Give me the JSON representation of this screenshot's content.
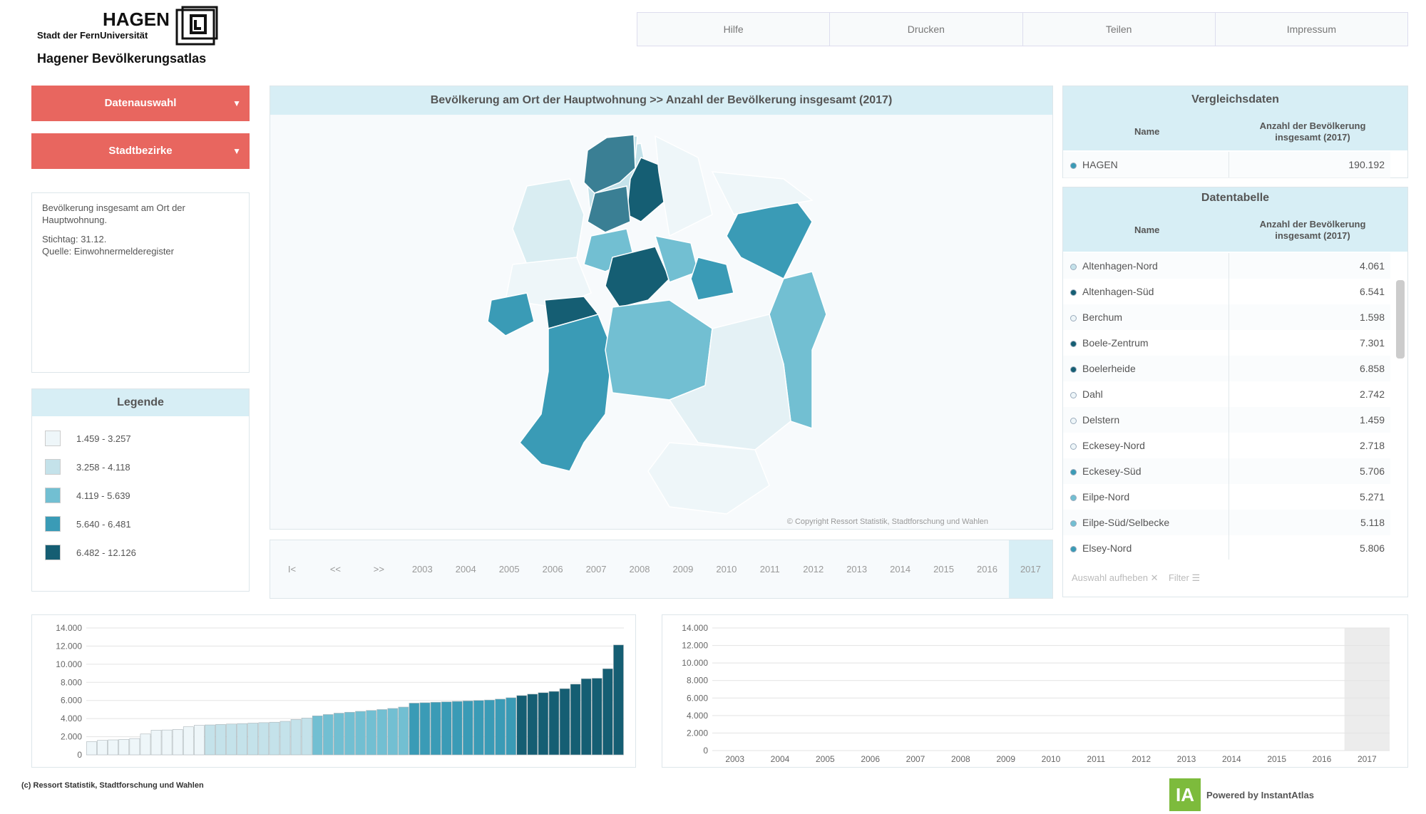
{
  "header": {
    "logo_text": "HAGEN",
    "logo_subtitle": "Stadt der FernUniversität",
    "title": "Hagener Bevölkerungsatlas"
  },
  "nav": [
    "Hilfe",
    "Drucken",
    "Teilen",
    "Impressum"
  ],
  "sidebar": {
    "buttons": [
      "Datenauswahl",
      "Stadtbezirke"
    ],
    "description": "Bevölkerung insgesamt am Ort der Hauptwohnung.",
    "reference_date": "Stichtag: 31.12.",
    "source": "Quelle: Einwohnermelderegister"
  },
  "legend": {
    "title": "Legende",
    "items": [
      {
        "label": "1.459 - 3.257",
        "min": 1459,
        "max": 3257,
        "color": "#eef6f9"
      },
      {
        "label": "3.258 - 4.118",
        "min": 3258,
        "max": 4118,
        "color": "#c4e2ea"
      },
      {
        "label": "4.119 - 5.639",
        "min": 4119,
        "max": 5639,
        "color": "#72bfd2"
      },
      {
        "label": "5.640 - 6.481",
        "min": 5640,
        "max": 6481,
        "color": "#3a9bb6"
      },
      {
        "label": "6.482 - 12.126",
        "min": 6482,
        "max": 12126,
        "color": "#155e73"
      }
    ]
  },
  "map": {
    "title": "Bevölkerung am Ort der Hauptwohnung >>  Anzahl der Bevölkerung insgesamt (2017)",
    "copyright": "© Copyright Ressort Statistik, Stadtforschung und Wahlen"
  },
  "timeline": {
    "controls": [
      "I<",
      "<<",
      ">>"
    ],
    "years": [
      "2003",
      "2004",
      "2005",
      "2006",
      "2007",
      "2008",
      "2009",
      "2010",
      "2011",
      "2012",
      "2013",
      "2014",
      "2015",
      "2016",
      "2017"
    ],
    "selected": "2017"
  },
  "comparison": {
    "title": "Vergleichsdaten",
    "columns": [
      "Name",
      "Anzahl der Bevölkerung insgesamt (2017)"
    ],
    "rows": [
      {
        "name": "HAGEN",
        "value": "190.192",
        "color": "#3a9bb6"
      }
    ]
  },
  "data_table": {
    "title": "Datentabelle",
    "columns": [
      "Name",
      "Anzahl der Bevölkerung insgesamt (2017)"
    ],
    "rows": [
      {
        "name": "Altenhagen-Nord",
        "value": "4.061",
        "color": "#c4e2ea"
      },
      {
        "name": "Altenhagen-Süd",
        "value": "6.541",
        "color": "#155e73"
      },
      {
        "name": "Berchum",
        "value": "1.598",
        "color": "#eef6f9"
      },
      {
        "name": "Boele-Zentrum",
        "value": "7.301",
        "color": "#155e73"
      },
      {
        "name": "Boelerheide",
        "value": "6.858",
        "color": "#155e73"
      },
      {
        "name": "Dahl",
        "value": "2.742",
        "color": "#eef6f9"
      },
      {
        "name": "Delstern",
        "value": "1.459",
        "color": "#eef6f9"
      },
      {
        "name": "Eckesey-Nord",
        "value": "2.718",
        "color": "#eef6f9"
      },
      {
        "name": "Eckesey-Süd",
        "value": "5.706",
        "color": "#3a9bb6"
      },
      {
        "name": "Eilpe-Nord",
        "value": "5.271",
        "color": "#72bfd2"
      },
      {
        "name": "Eilpe-Süd/Selbecke",
        "value": "5.118",
        "color": "#72bfd2"
      },
      {
        "name": "Elsey-Nord",
        "value": "5.806",
        "color": "#3a9bb6"
      }
    ],
    "footer": [
      "Auswahl aufheben",
      "Filter"
    ]
  },
  "bar_chart": {
    "values": [
      1459,
      1598,
      1650,
      1700,
      1800,
      2300,
      2718,
      2742,
      2800,
      3100,
      3257,
      3300,
      3350,
      3400,
      3450,
      3500,
      3550,
      3600,
      3700,
      3900,
      4061,
      4300,
      4450,
      4600,
      4700,
      4800,
      4900,
      5000,
      5118,
      5271,
      5706,
      5750,
      5806,
      5850,
      5900,
      5950,
      6000,
      6050,
      6150,
      6300,
      6541,
      6700,
      6858,
      7000,
      7301,
      7800,
      8400,
      8450,
      9500,
      12126
    ],
    "ylim": [
      0,
      14000
    ],
    "yticks": [
      0,
      {
        "value": 2000,
        "label": "2.000"
      },
      {
        "value": 4000,
        "label": "4.000"
      },
      {
        "value": 6000,
        "label": "6.000"
      },
      {
        "value": 8000,
        "label": "8.000"
      },
      {
        "value": 10000,
        "label": "10.000"
      },
      {
        "value": 12000,
        "label": "12.000"
      },
      {
        "value": 14000,
        "label": "14.000"
      }
    ]
  },
  "line_chart": {
    "x": [
      "2003",
      "2004",
      "2005",
      "2006",
      "2007",
      "2008",
      "2009",
      "2010",
      "2011",
      "2012",
      "2013",
      "2014",
      "2015",
      "2016",
      "2017"
    ],
    "selected": "2017",
    "ylim": [
      0,
      14000
    ],
    "yticks": [
      0,
      {
        "value": 2000,
        "label": "2.000"
      },
      {
        "value": 4000,
        "label": "4.000"
      },
      {
        "value": 6000,
        "label": "6.000"
      },
      {
        "value": 8000,
        "label": "8.000"
      },
      {
        "value": 10000,
        "label": "10.000"
      },
      {
        "value": 12000,
        "label": "12.000"
      },
      {
        "value": 14000,
        "label": "14.000"
      }
    ]
  },
  "footer": {
    "credit": "(c) Ressort Statistik, Stadtforschung und Wahlen",
    "powered_by": "Powered by InstantAtlas"
  }
}
